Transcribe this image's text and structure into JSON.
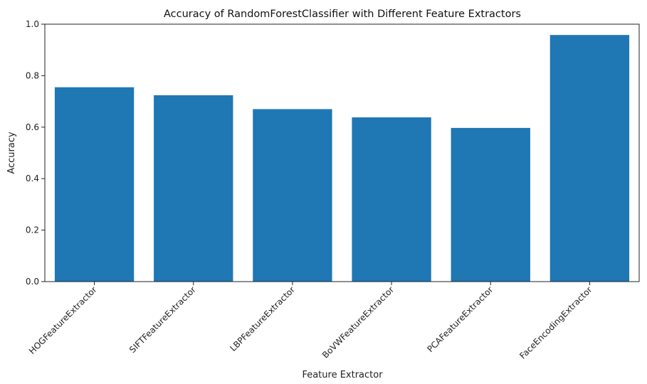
{
  "chart_data": {
    "type": "bar",
    "title": "Accuracy of RandomForestClassifier with Different Feature Extractors",
    "xlabel": "Feature Extractor",
    "ylabel": "Accuracy",
    "categories": [
      "HOGFeatureExtractor",
      "SIFTFeatureExtractor",
      "LBPFeatureExtractor",
      "BoVWFeatureExtractor",
      "PCAFeatureExtractor",
      "FaceEncodingExtractor"
    ],
    "values": [
      0.755,
      0.724,
      0.67,
      0.638,
      0.597,
      0.958
    ],
    "ylim": [
      0,
      1.0
    ],
    "yticks": [
      "0.0",
      "0.2",
      "0.4",
      "0.6",
      "0.8",
      "1.0"
    ],
    "grid": false,
    "bar_color": "#1f77b4"
  }
}
